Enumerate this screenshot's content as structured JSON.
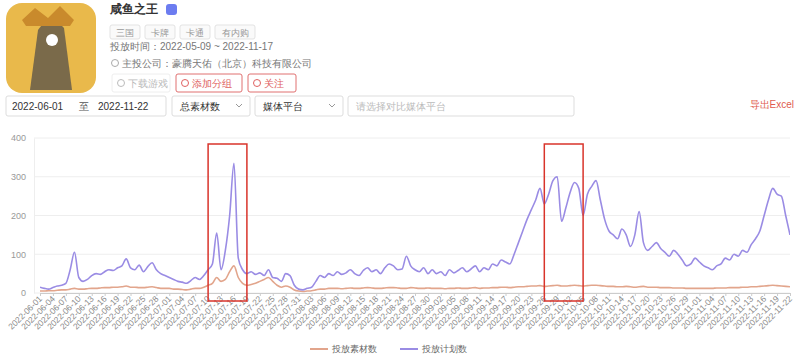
{
  "header": {
    "app_name": "咸鱼之王",
    "tags": [
      "三国",
      "卡牌",
      "卡通",
      "有内购"
    ],
    "launch_period": "投放时间：2022-05-09 ~ 2022-11-17",
    "publisher": "主投公司：豪腾天佑（北京）科技有限公司",
    "buttons": [
      "下载游戏",
      "添加分组",
      "关注"
    ]
  },
  "filters": {
    "date_from": "2022-06-01",
    "date_sep": "至",
    "date_to": "2022-11-22",
    "metric": "总素材数",
    "platform": "媒体平台",
    "compare_placeholder": "请选择对比媒体平台",
    "export": "导出Excel"
  },
  "chart_data": {
    "type": "line",
    "categories": [
      "2022-06-01",
      null,
      null,
      "2022-06-04",
      null,
      null,
      "2022-06-07",
      null,
      null,
      "2022-06-10",
      null,
      null,
      "2022-06-13",
      null,
      null,
      "2022-06-16",
      null,
      null,
      "2022-06-19",
      null,
      null,
      "2022-06-22",
      null,
      null,
      "2022-06-25",
      null,
      null,
      "2022-06-28",
      null,
      null,
      "2022-07-01",
      null,
      null,
      "2022-07-04",
      null,
      null,
      "2022-07-07",
      null,
      null,
      "2022-07-10",
      null,
      null,
      "2022-07-13",
      null,
      null,
      "2022-07-16",
      null,
      null,
      "2022-07-19",
      null,
      null,
      "2022-07-22",
      null,
      null,
      "2022-07-25",
      null,
      null,
      "2022-07-28",
      null,
      null,
      "2022-07-31",
      null,
      null,
      "2022-08-03",
      null,
      null,
      "2022-08-06",
      null,
      null,
      "2022-08-09",
      null,
      null,
      "2022-08-12",
      null,
      null,
      "2022-08-15",
      null,
      null,
      "2022-08-18",
      null,
      null,
      "2022-08-21",
      null,
      null,
      "2022-08-24",
      null,
      null,
      "2022-08-27",
      null,
      null,
      "2022-08-30",
      null,
      null,
      "2022-09-02",
      null,
      null,
      "2022-09-05",
      null,
      null,
      "2022-09-08",
      null,
      null,
      "2022-09-11",
      null,
      null,
      "2022-09-14",
      null,
      null,
      "2022-09-17",
      null,
      null,
      "2022-09-20",
      null,
      null,
      "2022-09-23",
      null,
      null,
      "2022-09-26",
      null,
      null,
      "2022-09-29",
      null,
      null,
      "2022-10-02",
      null,
      null,
      "2022-10-05",
      null,
      null,
      "2022-10-08",
      null,
      null,
      "2022-10-11",
      null,
      null,
      "2022-10-14",
      null,
      null,
      "2022-10-17",
      null,
      null,
      "2022-10-20",
      null,
      null,
      "2022-10-23",
      null,
      null,
      "2022-10-26",
      null,
      null,
      "2022-10-29",
      null,
      null,
      "2022-11-01",
      null,
      null,
      "2022-11-04",
      null,
      null,
      "2022-11-07",
      null,
      null,
      "2022-11-10",
      null,
      null,
      "2022-11-13",
      null,
      null,
      "2022-11-16",
      null,
      null,
      "2022-11-19",
      null,
      null,
      "2022-11-22"
    ],
    "series": [
      {
        "name": "投放素材数",
        "color": "#e2a58c",
        "values": [
          5,
          5,
          6,
          6,
          7,
          8,
          8,
          10,
          12,
          10,
          10,
          11,
          12,
          12,
          13,
          14,
          14,
          15,
          15,
          16,
          18,
          15,
          15,
          14,
          14,
          15,
          16,
          14,
          12,
          12,
          12,
          10,
          10,
          9,
          8,
          10,
          12,
          12,
          15,
          20,
          25,
          40,
          30,
          35,
          55,
          70,
          40,
          25,
          20,
          22,
          25,
          30,
          35,
          40,
          30,
          20,
          15,
          18,
          15,
          8,
          5,
          4,
          5,
          6,
          8,
          10,
          10,
          12,
          12,
          12,
          11,
          12,
          13,
          12,
          12,
          13,
          14,
          13,
          12,
          12,
          13,
          14,
          14,
          13,
          12,
          12,
          14,
          13,
          12,
          12,
          13,
          12,
          12,
          12,
          11,
          12,
          12,
          13,
          12,
          12,
          13,
          14,
          12,
          13,
          13,
          14,
          14,
          15,
          15,
          14,
          15,
          16,
          16,
          17,
          18,
          18,
          19,
          17,
          18,
          19,
          20,
          18,
          18,
          19,
          20,
          19,
          18,
          19,
          20,
          20,
          19,
          18,
          17,
          17,
          16,
          16,
          17,
          16,
          15,
          16,
          17,
          15,
          15,
          15,
          14,
          14,
          14,
          13,
          13,
          13,
          12,
          12,
          12,
          12,
          12,
          12,
          12,
          13,
          13,
          13,
          14,
          14,
          14,
          15,
          15,
          16,
          16,
          17,
          18,
          19,
          20,
          19,
          18,
          17,
          16
        ]
      },
      {
        "name": "投放计划数",
        "color": "#9a8ce4",
        "values": [
          15,
          12,
          10,
          14,
          18,
          20,
          25,
          60,
          105,
          40,
          30,
          35,
          45,
          50,
          48,
          55,
          60,
          58,
          65,
          70,
          88,
          65,
          60,
          72,
          55,
          68,
          78,
          60,
          50,
          45,
          40,
          35,
          30,
          28,
          25,
          32,
          40,
          35,
          45,
          60,
          75,
          155,
          60,
          110,
          200,
          335,
          90,
          60,
          50,
          55,
          48,
          52,
          45,
          60,
          40,
          38,
          30,
          50,
          45,
          20,
          10,
          8,
          12,
          15,
          30,
          45,
          40,
          50,
          45,
          55,
          48,
          52,
          60,
          50,
          45,
          58,
          65,
          55,
          60,
          50,
          65,
          75,
          70,
          60,
          62,
          95,
          70,
          60,
          55,
          65,
          50,
          60,
          50,
          55,
          45,
          60,
          52,
          58,
          65,
          55,
          62,
          70,
          55,
          65,
          60,
          75,
          70,
          85,
          80,
          75,
          100,
          130,
          160,
          190,
          215,
          240,
          270,
          230,
          255,
          290,
          300,
          185,
          220,
          260,
          285,
          270,
          200,
          255,
          275,
          290,
          240,
          190,
          160,
          150,
          140,
          165,
          150,
          120,
          150,
          210,
          130,
          110,
          120,
          130,
          115,
          105,
          95,
          110,
          100,
          85,
          70,
          75,
          90,
          80,
          70,
          65,
          60,
          70,
          75,
          90,
          85,
          100,
          95,
          110,
          105,
          125,
          140,
          160,
          200,
          240,
          270,
          255,
          250,
          200,
          150
        ]
      }
    ],
    "highlights": [
      [
        "2022-07-10",
        "2022-07-19"
      ],
      [
        "2022-09-26",
        "2022-10-05"
      ]
    ],
    "ylim": [
      0,
      400
    ],
    "yticks": [
      0,
      100,
      200,
      300,
      400
    ],
    "grid": true,
    "legend": "bottom"
  }
}
